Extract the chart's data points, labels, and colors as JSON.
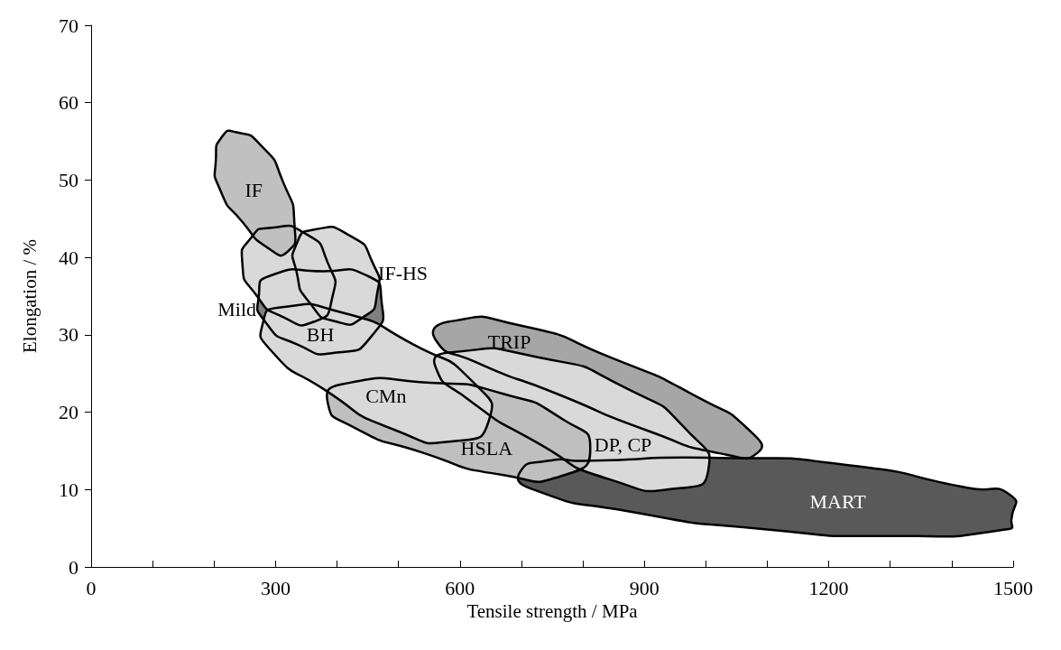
{
  "chart_data": {
    "type": "area",
    "xlabel": "Tensile strength / MPa",
    "ylabel": "Elongation / %",
    "xlim": [
      0,
      1500
    ],
    "xticks": [
      0,
      {
        "value": 100,
        "label": null
      },
      {
        "value": 200,
        "label": null
      },
      300,
      {
        "value": 400,
        "label": null
      },
      {
        "value": 500,
        "label": null
      },
      600,
      {
        "value": 700,
        "label": null
      },
      {
        "value": 800,
        "label": null
      },
      900,
      {
        "value": 1000,
        "label": null
      },
      {
        "value": 1100,
        "label": null
      },
      1200,
      {
        "value": 1300,
        "label": null
      },
      {
        "value": 1400,
        "label": null
      },
      1500
    ],
    "ylim": [
      0,
      70
    ],
    "yticks": [
      0,
      10,
      20,
      30,
      40,
      50,
      60,
      70
    ],
    "series": [
      {
        "name": "TRIP",
        "color": "#a6a6a6",
        "x": [
          582,
          698,
          844,
          990,
          1077,
          1085,
          1034,
          902,
          757,
          625,
          560
        ],
        "values": [
          31.7,
          31.2,
          27.1,
          21.8,
          17.2,
          14.8,
          14.5,
          17.7,
          22.4,
          26.5,
          29.4
        ]
      },
      {
        "name": "MART",
        "color": "#595959",
        "x": [
          800,
          1019,
          1238,
          1427,
          1497,
          1497,
          1493,
          1310,
          1092,
          873,
          713,
          698,
          742
        ],
        "values": [
          13.7,
          14.1,
          13.1,
          10.2,
          9.2,
          6.1,
          4.9,
          4.0,
          4.9,
          7.2,
          10.2,
          12.3,
          13.7
        ]
      },
      {
        "name": "DP, CP",
        "color": "#d9d9d9",
        "x": [
          582,
          727,
          873,
          975,
          1004,
          961,
          844,
          727,
          611,
          560
        ],
        "values": [
          27.7,
          27.1,
          23.0,
          17.2,
          12.5,
          10.2,
          11.3,
          16.0,
          21.8,
          25.9
        ]
      },
      {
        "name": "HSLA",
        "color": "#bfbfbf",
        "x": [
          407,
          552,
          669,
          771,
          812,
          771,
          669,
          538,
          421,
          385
        ],
        "values": [
          23.6,
          23.8,
          22.4,
          18.9,
          15.4,
          11.9,
          11.9,
          14.8,
          18.3,
          21.2
        ]
      },
      {
        "name": "BH",
        "color": "#808080",
        "x": [
          290,
          378,
          450,
          472,
          458,
          399,
          334,
          283,
          273
        ],
        "values": [
          37.6,
          38.2,
          37.6,
          34.7,
          30.0,
          27.7,
          28.8,
          31.7,
          35.2
        ]
      },
      {
        "name": "CMn",
        "color": "#d9d9d9",
        "x": [
          305,
          407,
          523,
          625,
          647,
          596,
          494,
          378,
          290,
          280
        ],
        "values": [
          33.5,
          32.9,
          28.8,
          23.6,
          18.9,
          16.3,
          17.7,
          23.0,
          28.2,
          31.7
        ]
      },
      {
        "name": "IF-HS",
        "color": "#d9d9d9",
        "x": [
          363,
          421,
          458,
          465,
          443,
          399,
          356,
          334,
          334
        ],
        "values": [
          43.6,
          42.8,
          39.3,
          35.2,
          32.3,
          31.7,
          34.1,
          38.2,
          41.7
        ]
      },
      {
        "name": "Mild",
        "color": "#d9d9d9",
        "x": [
          290,
          348,
          385,
          392,
          363,
          312,
          268,
          246,
          261
        ],
        "values": [
          43.8,
          43.1,
          39.3,
          34.7,
          31.7,
          32.3,
          35.2,
          39.3,
          42.6
        ]
      },
      {
        "name": "IF",
        "color": "#c0c0c0",
        "x": [
          235,
          276,
          312,
          331,
          319,
          290,
          246,
          210,
          203,
          214
        ],
        "values": [
          56.2,
          54.5,
          49.8,
          44.0,
          40.7,
          41.1,
          44.6,
          48.7,
          52.7,
          55.7
        ]
      }
    ]
  }
}
